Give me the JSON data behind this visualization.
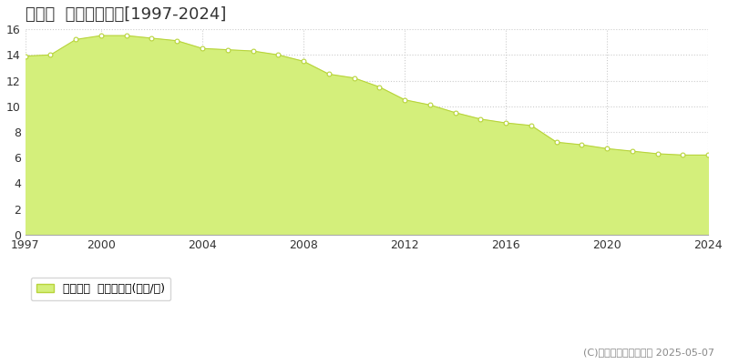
{
  "title": "由良町  基準地価推移[1997-2024]",
  "years": [
    1997,
    1998,
    1999,
    2000,
    2001,
    2002,
    2003,
    2004,
    2005,
    2006,
    2007,
    2008,
    2009,
    2010,
    2011,
    2012,
    2013,
    2014,
    2015,
    2016,
    2017,
    2018,
    2019,
    2020,
    2021,
    2022,
    2023,
    2024
  ],
  "values": [
    13.9,
    14.0,
    15.2,
    15.5,
    15.5,
    15.3,
    15.1,
    14.5,
    14.4,
    14.3,
    14.0,
    13.5,
    12.5,
    12.2,
    11.5,
    10.5,
    10.1,
    9.5,
    9.0,
    8.7,
    8.5,
    7.2,
    7.0,
    6.7,
    6.5,
    6.3,
    6.2,
    6.2
  ],
  "fill_color": "#d4ef7b",
  "line_color": "#b8d43b",
  "marker_facecolor": "#ffffff",
  "marker_edgecolor": "#b8d43b",
  "plot_bg_color": "#ffffff",
  "fig_bg_color": "#ffffff",
  "grid_color": "#cccccc",
  "ylim": [
    0,
    16
  ],
  "yticks": [
    0,
    2,
    4,
    6,
    8,
    10,
    12,
    14,
    16
  ],
  "xticks": [
    1997,
    2000,
    2004,
    2008,
    2012,
    2016,
    2020,
    2024
  ],
  "legend_label": "基準地価  平均坪単価(万円/坪)",
  "copyright_text": "(C)土地価格ドットコム 2025-05-07",
  "title_fontsize": 13,
  "tick_fontsize": 9,
  "legend_fontsize": 9,
  "copyright_fontsize": 8
}
